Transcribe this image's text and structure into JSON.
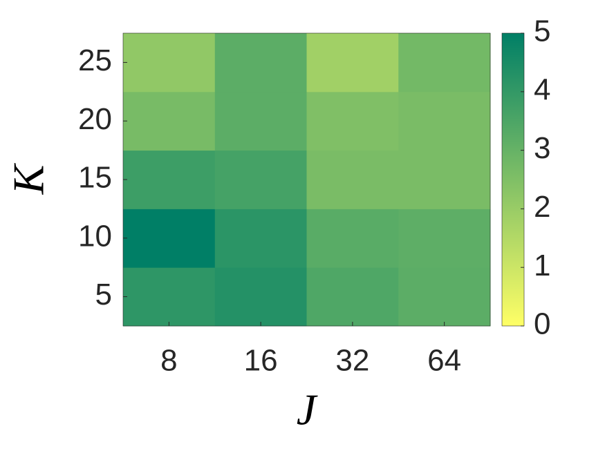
{
  "chart_data": {
    "type": "heatmap",
    "x_label": "J",
    "y_label": "K",
    "x_categories": [
      "8",
      "16",
      "32",
      "64"
    ],
    "y_categories": [
      "5",
      "10",
      "15",
      "20",
      "25"
    ],
    "values": [
      [
        4.1,
        4.3,
        3.45,
        3.2
      ],
      [
        5.0,
        4.15,
        3.25,
        3.15
      ],
      [
        3.8,
        3.65,
        2.6,
        2.6
      ],
      [
        2.65,
        3.2,
        2.5,
        2.6
      ],
      [
        2.15,
        3.2,
        1.85,
        2.75
      ]
    ],
    "colormap": [
      "#ffff66",
      "#007f66"
    ],
    "clim": [
      0,
      5
    ],
    "cticks": [
      0,
      1,
      2,
      3,
      4,
      5
    ]
  }
}
